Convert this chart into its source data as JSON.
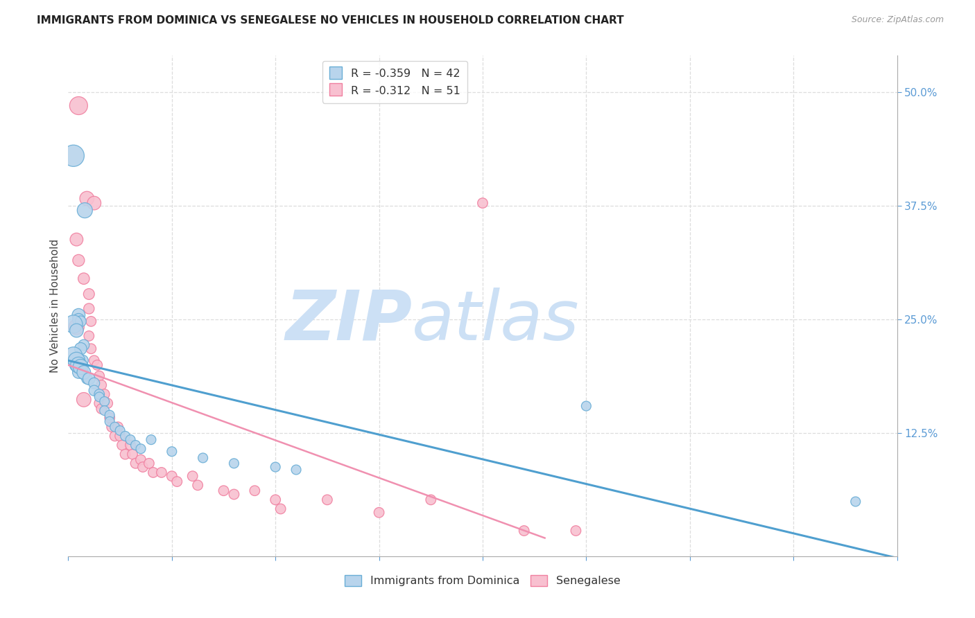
{
  "title": "IMMIGRANTS FROM DOMINICA VS SENEGALESE NO VEHICLES IN HOUSEHOLD CORRELATION CHART",
  "source": "Source: ZipAtlas.com",
  "ylabel": "No Vehicles in Household",
  "ytick_values": [
    0.125,
    0.25,
    0.375,
    0.5
  ],
  "xlim": [
    0.0,
    0.08
  ],
  "ylim": [
    -0.01,
    0.54
  ],
  "legend_dominica_R": "-0.359",
  "legend_dominica_N": "42",
  "legend_senegalese_R": "-0.312",
  "legend_senegalese_N": "51",
  "dominica_color": "#b8d4ec",
  "senegalese_color": "#f8c0d0",
  "dominica_edge_color": "#6aaed6",
  "senegalese_edge_color": "#f080a0",
  "dominica_line_color": "#4f9fcf",
  "senegalese_line_color": "#f090b0",
  "dominica_points": [
    [
      0.0005,
      0.43
    ],
    [
      0.0016,
      0.37
    ],
    [
      0.001,
      0.255
    ],
    [
      0.001,
      0.25
    ],
    [
      0.0012,
      0.248
    ],
    [
      0.0005,
      0.245
    ],
    [
      0.0008,
      0.238
    ],
    [
      0.0015,
      0.222
    ],
    [
      0.0012,
      0.218
    ],
    [
      0.0014,
      0.205
    ],
    [
      0.0008,
      0.2
    ],
    [
      0.001,
      0.192
    ],
    [
      0.0015,
      0.19
    ],
    [
      0.0018,
      0.185
    ],
    [
      0.0005,
      0.21
    ],
    [
      0.0008,
      0.205
    ],
    [
      0.001,
      0.2
    ],
    [
      0.0012,
      0.198
    ],
    [
      0.0015,
      0.192
    ],
    [
      0.002,
      0.185
    ],
    [
      0.0025,
      0.18
    ],
    [
      0.0025,
      0.172
    ],
    [
      0.003,
      0.168
    ],
    [
      0.003,
      0.165
    ],
    [
      0.0035,
      0.16
    ],
    [
      0.0035,
      0.15
    ],
    [
      0.004,
      0.145
    ],
    [
      0.004,
      0.138
    ],
    [
      0.0045,
      0.132
    ],
    [
      0.005,
      0.128
    ],
    [
      0.0055,
      0.122
    ],
    [
      0.006,
      0.118
    ],
    [
      0.0065,
      0.112
    ],
    [
      0.007,
      0.108
    ],
    [
      0.008,
      0.118
    ],
    [
      0.01,
      0.105
    ],
    [
      0.013,
      0.098
    ],
    [
      0.016,
      0.092
    ],
    [
      0.02,
      0.088
    ],
    [
      0.022,
      0.085
    ],
    [
      0.05,
      0.155
    ],
    [
      0.076,
      0.05
    ]
  ],
  "dominica_sizes": [
    500,
    250,
    180,
    160,
    130,
    350,
    200,
    130,
    160,
    130,
    200,
    160,
    130,
    120,
    350,
    300,
    280,
    250,
    200,
    160,
    130,
    120,
    110,
    100,
    100,
    100,
    100,
    100,
    100,
    100,
    100,
    100,
    100,
    100,
    100,
    100,
    100,
    100,
    100,
    100,
    100,
    100
  ],
  "senegalese_points": [
    [
      0.001,
      0.485
    ],
    [
      0.0018,
      0.383
    ],
    [
      0.0025,
      0.378
    ],
    [
      0.0008,
      0.338
    ],
    [
      0.001,
      0.315
    ],
    [
      0.0015,
      0.295
    ],
    [
      0.002,
      0.278
    ],
    [
      0.002,
      0.262
    ],
    [
      0.0022,
      0.248
    ],
    [
      0.0008,
      0.242
    ],
    [
      0.002,
      0.232
    ],
    [
      0.0022,
      0.218
    ],
    [
      0.0025,
      0.205
    ],
    [
      0.0028,
      0.2
    ],
    [
      0.003,
      0.188
    ],
    [
      0.0032,
      0.178
    ],
    [
      0.0035,
      0.168
    ],
    [
      0.0015,
      0.162
    ],
    [
      0.003,
      0.158
    ],
    [
      0.0032,
      0.152
    ],
    [
      0.0038,
      0.158
    ],
    [
      0.004,
      0.142
    ],
    [
      0.0042,
      0.132
    ],
    [
      0.0045,
      0.122
    ],
    [
      0.0048,
      0.132
    ],
    [
      0.005,
      0.122
    ],
    [
      0.0052,
      0.112
    ],
    [
      0.0055,
      0.102
    ],
    [
      0.006,
      0.112
    ],
    [
      0.0062,
      0.102
    ],
    [
      0.0065,
      0.092
    ],
    [
      0.007,
      0.096
    ],
    [
      0.0072,
      0.088
    ],
    [
      0.0078,
      0.092
    ],
    [
      0.0082,
      0.082
    ],
    [
      0.009,
      0.082
    ],
    [
      0.01,
      0.078
    ],
    [
      0.0105,
      0.072
    ],
    [
      0.012,
      0.078
    ],
    [
      0.0125,
      0.068
    ],
    [
      0.015,
      0.062
    ],
    [
      0.016,
      0.058
    ],
    [
      0.018,
      0.062
    ],
    [
      0.02,
      0.052
    ],
    [
      0.0205,
      0.042
    ],
    [
      0.025,
      0.052
    ],
    [
      0.03,
      0.038
    ],
    [
      0.035,
      0.052
    ],
    [
      0.04,
      0.378
    ],
    [
      0.044,
      0.018
    ],
    [
      0.049,
      0.018
    ]
  ],
  "senegalese_sizes": [
    350,
    220,
    200,
    180,
    150,
    140,
    130,
    120,
    110,
    250,
    110,
    110,
    110,
    110,
    110,
    110,
    110,
    220,
    110,
    110,
    110,
    110,
    110,
    110,
    110,
    110,
    110,
    110,
    110,
    110,
    110,
    110,
    110,
    110,
    110,
    110,
    110,
    110,
    110,
    110,
    110,
    110,
    110,
    110,
    110,
    110,
    110,
    110,
    110,
    110,
    110
  ],
  "dom_trend_x": [
    0.0,
    0.08
  ],
  "dom_trend_y": [
    0.205,
    -0.012
  ],
  "sen_trend_x": [
    0.0,
    0.046
  ],
  "sen_trend_y": [
    0.2,
    0.01
  ],
  "watermark_zip_color": "#cce0f5",
  "watermark_atlas_color": "#cce0f5",
  "background_color": "#ffffff",
  "grid_color": "#dddddd",
  "tick_color": "#5b9bd5",
  "right_tick_color": "#5b9bd5"
}
